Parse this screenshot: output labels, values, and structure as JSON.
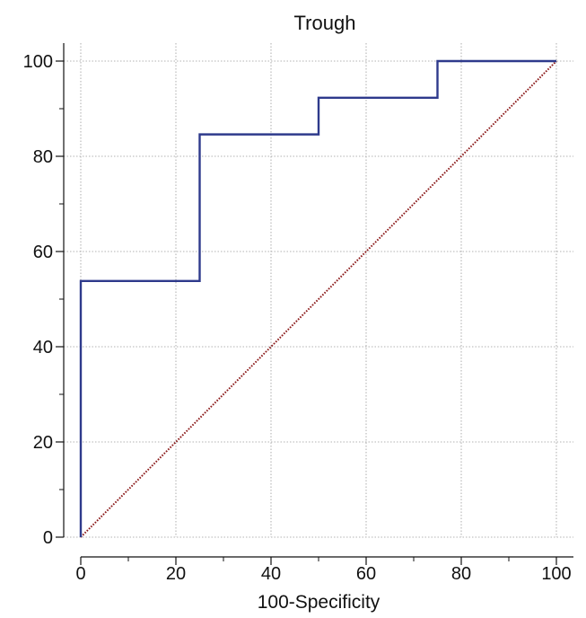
{
  "chart_data": {
    "type": "line",
    "title": "Trough",
    "xlabel": "100-Specificity",
    "ylabel": "",
    "xlim": [
      0,
      100
    ],
    "ylim": [
      0,
      100
    ],
    "xticks": [
      "0",
      "20",
      "40",
      "60",
      "80",
      "100"
    ],
    "yticks": [
      "0",
      "20",
      "40",
      "60",
      "80",
      "100"
    ],
    "grid": true,
    "series": [
      {
        "step": true,
        "color": "#2e3a8c",
        "x": [
          0,
          0,
          25,
          25,
          50,
          50,
          75,
          75,
          100
        ],
        "y": [
          0,
          53.8,
          53.8,
          84.6,
          84.6,
          92.3,
          92.3,
          100,
          100
        ]
      },
      {
        "color": "#8b1a1a",
        "dotted": true,
        "x": [
          0,
          100
        ],
        "y": [
          0,
          100
        ]
      }
    ]
  }
}
